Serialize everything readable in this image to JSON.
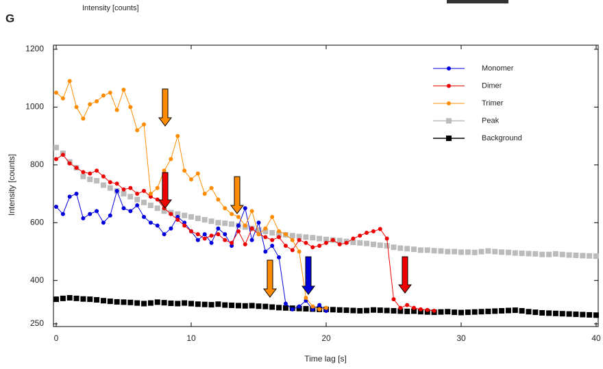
{
  "panel_label": "G",
  "top_caption": "Intensity  [counts]",
  "chart_data": {
    "type": "line",
    "xlabel": "Time lag [s]",
    "ylabel": "Intensity  [counts]",
    "xlim": [
      0,
      40
    ],
    "xticks": [
      0,
      10,
      20,
      30,
      40
    ],
    "ylim": [
      250,
      1200
    ],
    "yticks": [
      250,
      400,
      600,
      800,
      1000,
      1200
    ],
    "legend": "upper right",
    "series": [
      {
        "name": "Monomer",
        "color": "#0000dd",
        "marker": "circle",
        "x": [
          0,
          0.5,
          1,
          1.5,
          2,
          2.5,
          3,
          3.5,
          4,
          4.5,
          5,
          5.5,
          6,
          6.5,
          7,
          7.5,
          8,
          8.5,
          9,
          9.5,
          10,
          10.5,
          11,
          11.5,
          12,
          12.5,
          13,
          13.5,
          14,
          14.5,
          15,
          15.5,
          16,
          16.5,
          17,
          17.5,
          18,
          18.5,
          19,
          19.5,
          20
        ],
        "values": [
          655,
          630,
          690,
          700,
          615,
          630,
          640,
          600,
          625,
          710,
          650,
          640,
          660,
          620,
          600,
          590,
          560,
          580,
          620,
          600,
          570,
          540,
          560,
          530,
          580,
          560,
          520,
          590,
          650,
          540,
          600,
          500,
          520,
          480,
          320,
          300,
          310,
          330,
          300,
          315,
          295
        ]
      },
      {
        "name": "Dimer",
        "color": "#ee0000",
        "marker": "circle",
        "x": [
          0,
          0.5,
          1,
          1.5,
          2,
          2.5,
          3,
          3.5,
          4,
          4.5,
          5,
          5.5,
          6,
          6.5,
          7,
          7.5,
          8,
          8.5,
          9,
          9.5,
          10,
          10.5,
          11,
          11.5,
          12,
          12.5,
          13,
          13.5,
          14,
          14.5,
          15,
          15.5,
          16,
          16.5,
          17,
          17.5,
          18,
          18.5,
          19,
          19.5,
          20,
          20.5,
          21,
          21.5,
          22,
          22.5,
          23,
          23.5,
          24,
          24.5,
          25,
          25.5,
          26,
          26.5,
          27,
          27.5,
          28
        ],
        "values": [
          820,
          835,
          805,
          790,
          775,
          770,
          780,
          760,
          740,
          735,
          715,
          720,
          700,
          710,
          690,
          680,
          650,
          630,
          610,
          590,
          570,
          560,
          545,
          555,
          560,
          540,
          530,
          570,
          525,
          580,
          560,
          550,
          540,
          550,
          520,
          505,
          540,
          530,
          515,
          520,
          530,
          540,
          525,
          530,
          545,
          555,
          565,
          570,
          578,
          545,
          335,
          305,
          315,
          305,
          300,
          298,
          295
        ]
      },
      {
        "name": "Trimer",
        "color": "#ff8c00",
        "marker": "circle",
        "x": [
          0,
          0.5,
          1,
          1.5,
          2,
          2.5,
          3,
          3.5,
          4,
          4.5,
          5,
          5.5,
          6,
          6.5,
          7,
          7.5,
          8,
          8.5,
          9,
          9.5,
          10,
          10.5,
          11,
          11.5,
          12,
          12.5,
          13,
          13.5,
          14,
          14.5,
          15,
          15.5,
          16,
          16.5,
          17,
          17.5,
          18,
          18.5,
          19,
          19.5,
          20
        ],
        "values": [
          1050,
          1030,
          1090,
          1000,
          960,
          1010,
          1020,
          1040,
          1050,
          990,
          1060,
          1000,
          920,
          940,
          700,
          720,
          780,
          820,
          900,
          780,
          750,
          770,
          700,
          720,
          680,
          650,
          630,
          620,
          590,
          640,
          560,
          580,
          620,
          570,
          560,
          540,
          500,
          340,
          310,
          300,
          305
        ]
      },
      {
        "name": "Peak",
        "color": "#bbbbbb",
        "marker": "square",
        "x": [
          0,
          0.5,
          1,
          1.5,
          2,
          2.5,
          3,
          3.5,
          4,
          4.5,
          5,
          5.5,
          6,
          6.5,
          7,
          7.5,
          8,
          8.5,
          9,
          9.5,
          10,
          10.5,
          11,
          11.5,
          12,
          12.5,
          13,
          13.5,
          14,
          14.5,
          15,
          15.5,
          16,
          16.5,
          17,
          17.5,
          18,
          18.5,
          19,
          19.5,
          20,
          20.5,
          21,
          21.5,
          22,
          22.5,
          23,
          23.5,
          24,
          24.5,
          25,
          25.5,
          26,
          26.5,
          27,
          27.5,
          28,
          28.5,
          29,
          29.5,
          30,
          30.5,
          31,
          31.5,
          32,
          32.5,
          33,
          33.5,
          34,
          34.5,
          35,
          35.5,
          36,
          36.5,
          37,
          37.5,
          38,
          38.5,
          39,
          39.5,
          40
        ],
        "values": [
          860,
          840,
          810,
          790,
          760,
          750,
          745,
          730,
          720,
          710,
          700,
          690,
          680,
          670,
          660,
          650,
          640,
          635,
          630,
          625,
          620,
          615,
          610,
          605,
          600,
          598,
          595,
          590,
          585,
          580,
          575,
          570,
          565,
          560,
          558,
          555,
          552,
          550,
          548,
          545,
          542,
          540,
          538,
          535,
          532,
          530,
          528,
          525,
          522,
          520,
          515,
          512,
          510,
          508,
          505,
          505,
          503,
          502,
          500,
          500,
          498,
          498,
          497,
          500,
          502,
          500,
          498,
          497,
          495,
          494,
          493,
          492,
          490,
          490,
          492,
          490,
          488,
          487,
          486,
          485,
          484
        ]
      },
      {
        "name": "Background",
        "color": "#000000",
        "marker": "square",
        "x": [
          0,
          0.5,
          1,
          1.5,
          2,
          2.5,
          3,
          3.5,
          4,
          4.5,
          5,
          5.5,
          6,
          6.5,
          7,
          7.5,
          8,
          8.5,
          9,
          9.5,
          10,
          10.5,
          11,
          11.5,
          12,
          12.5,
          13,
          13.5,
          14,
          14.5,
          15,
          15.5,
          16,
          16.5,
          17,
          17.5,
          18,
          18.5,
          19,
          19.5,
          20,
          20.5,
          21,
          21.5,
          22,
          22.5,
          23,
          23.5,
          24,
          24.5,
          25,
          25.5,
          26,
          26.5,
          27,
          27.5,
          28,
          28.5,
          29,
          29.5,
          30,
          30.5,
          31,
          31.5,
          32,
          32.5,
          33,
          33.5,
          34,
          34.5,
          35,
          35.5,
          36,
          36.5,
          37,
          37.5,
          38,
          38.5,
          39,
          39.5,
          40
        ],
        "values": [
          335,
          338,
          340,
          338,
          336,
          335,
          333,
          330,
          328,
          326,
          325,
          324,
          322,
          320,
          322,
          325,
          323,
          321,
          320,
          322,
          320,
          318,
          317,
          316,
          318,
          315,
          314,
          313,
          312,
          313,
          311,
          310,
          308,
          306,
          305,
          304,
          303,
          302,
          301,
          300,
          300,
          299,
          298,
          297,
          296,
          295,
          296,
          298,
          297,
          296,
          295,
          294,
          293,
          294,
          292,
          291,
          290,
          291,
          292,
          290,
          289,
          290,
          291,
          292,
          293,
          294,
          295,
          296,
          297,
          295,
          292,
          290,
          288,
          287,
          286,
          285,
          284,
          283,
          282,
          281,
          280
        ]
      }
    ]
  }
}
